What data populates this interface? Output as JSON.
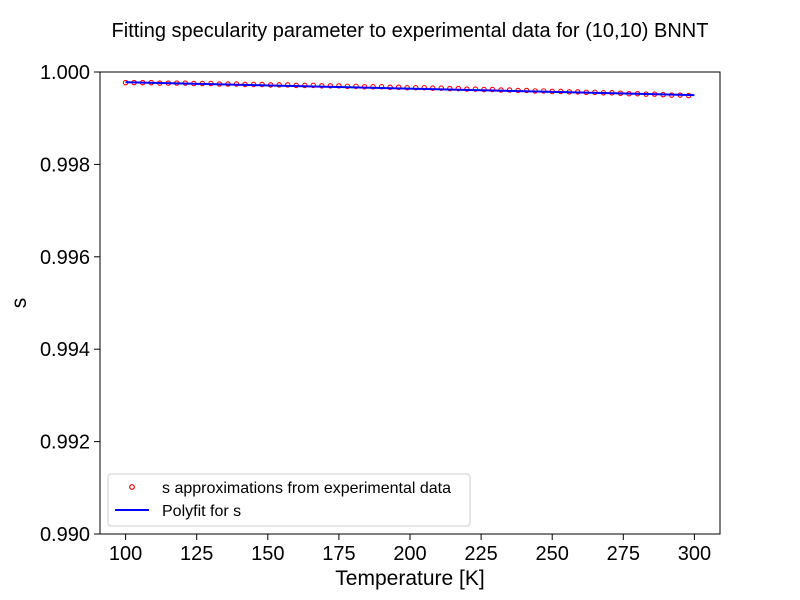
{
  "chart_data": {
    "type": "scatter",
    "title": "Fitting specularity parameter to experimental data for (10,10) BNNT",
    "xlabel": "Temperature [K]",
    "ylabel": "s",
    "xlim": [
      91,
      309
    ],
    "ylim": [
      0.99,
      1.0
    ],
    "xticks": [
      100,
      125,
      150,
      175,
      200,
      225,
      250,
      275,
      300
    ],
    "yticks": [
      0.99,
      0.992,
      0.994,
      0.996,
      0.998,
      1.0
    ],
    "ytick_labels": [
      "0.990",
      "0.992",
      "0.994",
      "0.996",
      "0.998",
      "1.000"
    ],
    "grid": false,
    "legend_position": "lower-left",
    "series": [
      {
        "name": "s approximations from experimental data",
        "kind": "scatter",
        "marker": "open-circle",
        "color": "#ff0000",
        "edge_color": "#8b0000",
        "x": [
          100,
          103,
          106,
          109,
          112,
          115,
          118,
          121,
          124,
          127,
          130,
          133,
          136,
          139,
          142,
          145,
          148,
          151,
          154,
          157,
          160,
          163,
          166,
          169,
          172,
          175,
          178,
          181,
          184,
          187,
          190,
          193,
          196,
          199,
          202,
          205,
          208,
          211,
          214,
          217,
          220,
          223,
          226,
          229,
          232,
          235,
          238,
          241,
          244,
          247,
          250,
          253,
          256,
          259,
          262,
          265,
          268,
          271,
          274,
          277,
          280,
          283,
          286,
          289,
          292,
          295,
          298
        ],
        "y": [
          0.99977,
          0.99977,
          0.99977,
          0.99977,
          0.99976,
          0.99976,
          0.99976,
          0.99976,
          0.99975,
          0.99975,
          0.99975,
          0.99974,
          0.99974,
          0.99974,
          0.99973,
          0.99973,
          0.99973,
          0.99972,
          0.99972,
          0.99972,
          0.99971,
          0.99971,
          0.99971,
          0.9997,
          0.9997,
          0.9997,
          0.99969,
          0.99969,
          0.99968,
          0.99968,
          0.99968,
          0.99967,
          0.99967,
          0.99966,
          0.99966,
          0.99966,
          0.99965,
          0.99965,
          0.99964,
          0.99964,
          0.99963,
          0.99963,
          0.99962,
          0.99962,
          0.99961,
          0.99961,
          0.9996,
          0.9996,
          0.99959,
          0.99959,
          0.99958,
          0.99958,
          0.99957,
          0.99957,
          0.99956,
          0.99956,
          0.99955,
          0.99955,
          0.99954,
          0.99953,
          0.99953,
          0.99952,
          0.99952,
          0.99951,
          0.9995,
          0.9995,
          0.99949
        ]
      },
      {
        "name": "Polyfit for s",
        "kind": "line",
        "color": "#0000ff",
        "x": [
          100,
          300
        ],
        "y": [
          0.99978,
          0.9995
        ]
      }
    ]
  }
}
